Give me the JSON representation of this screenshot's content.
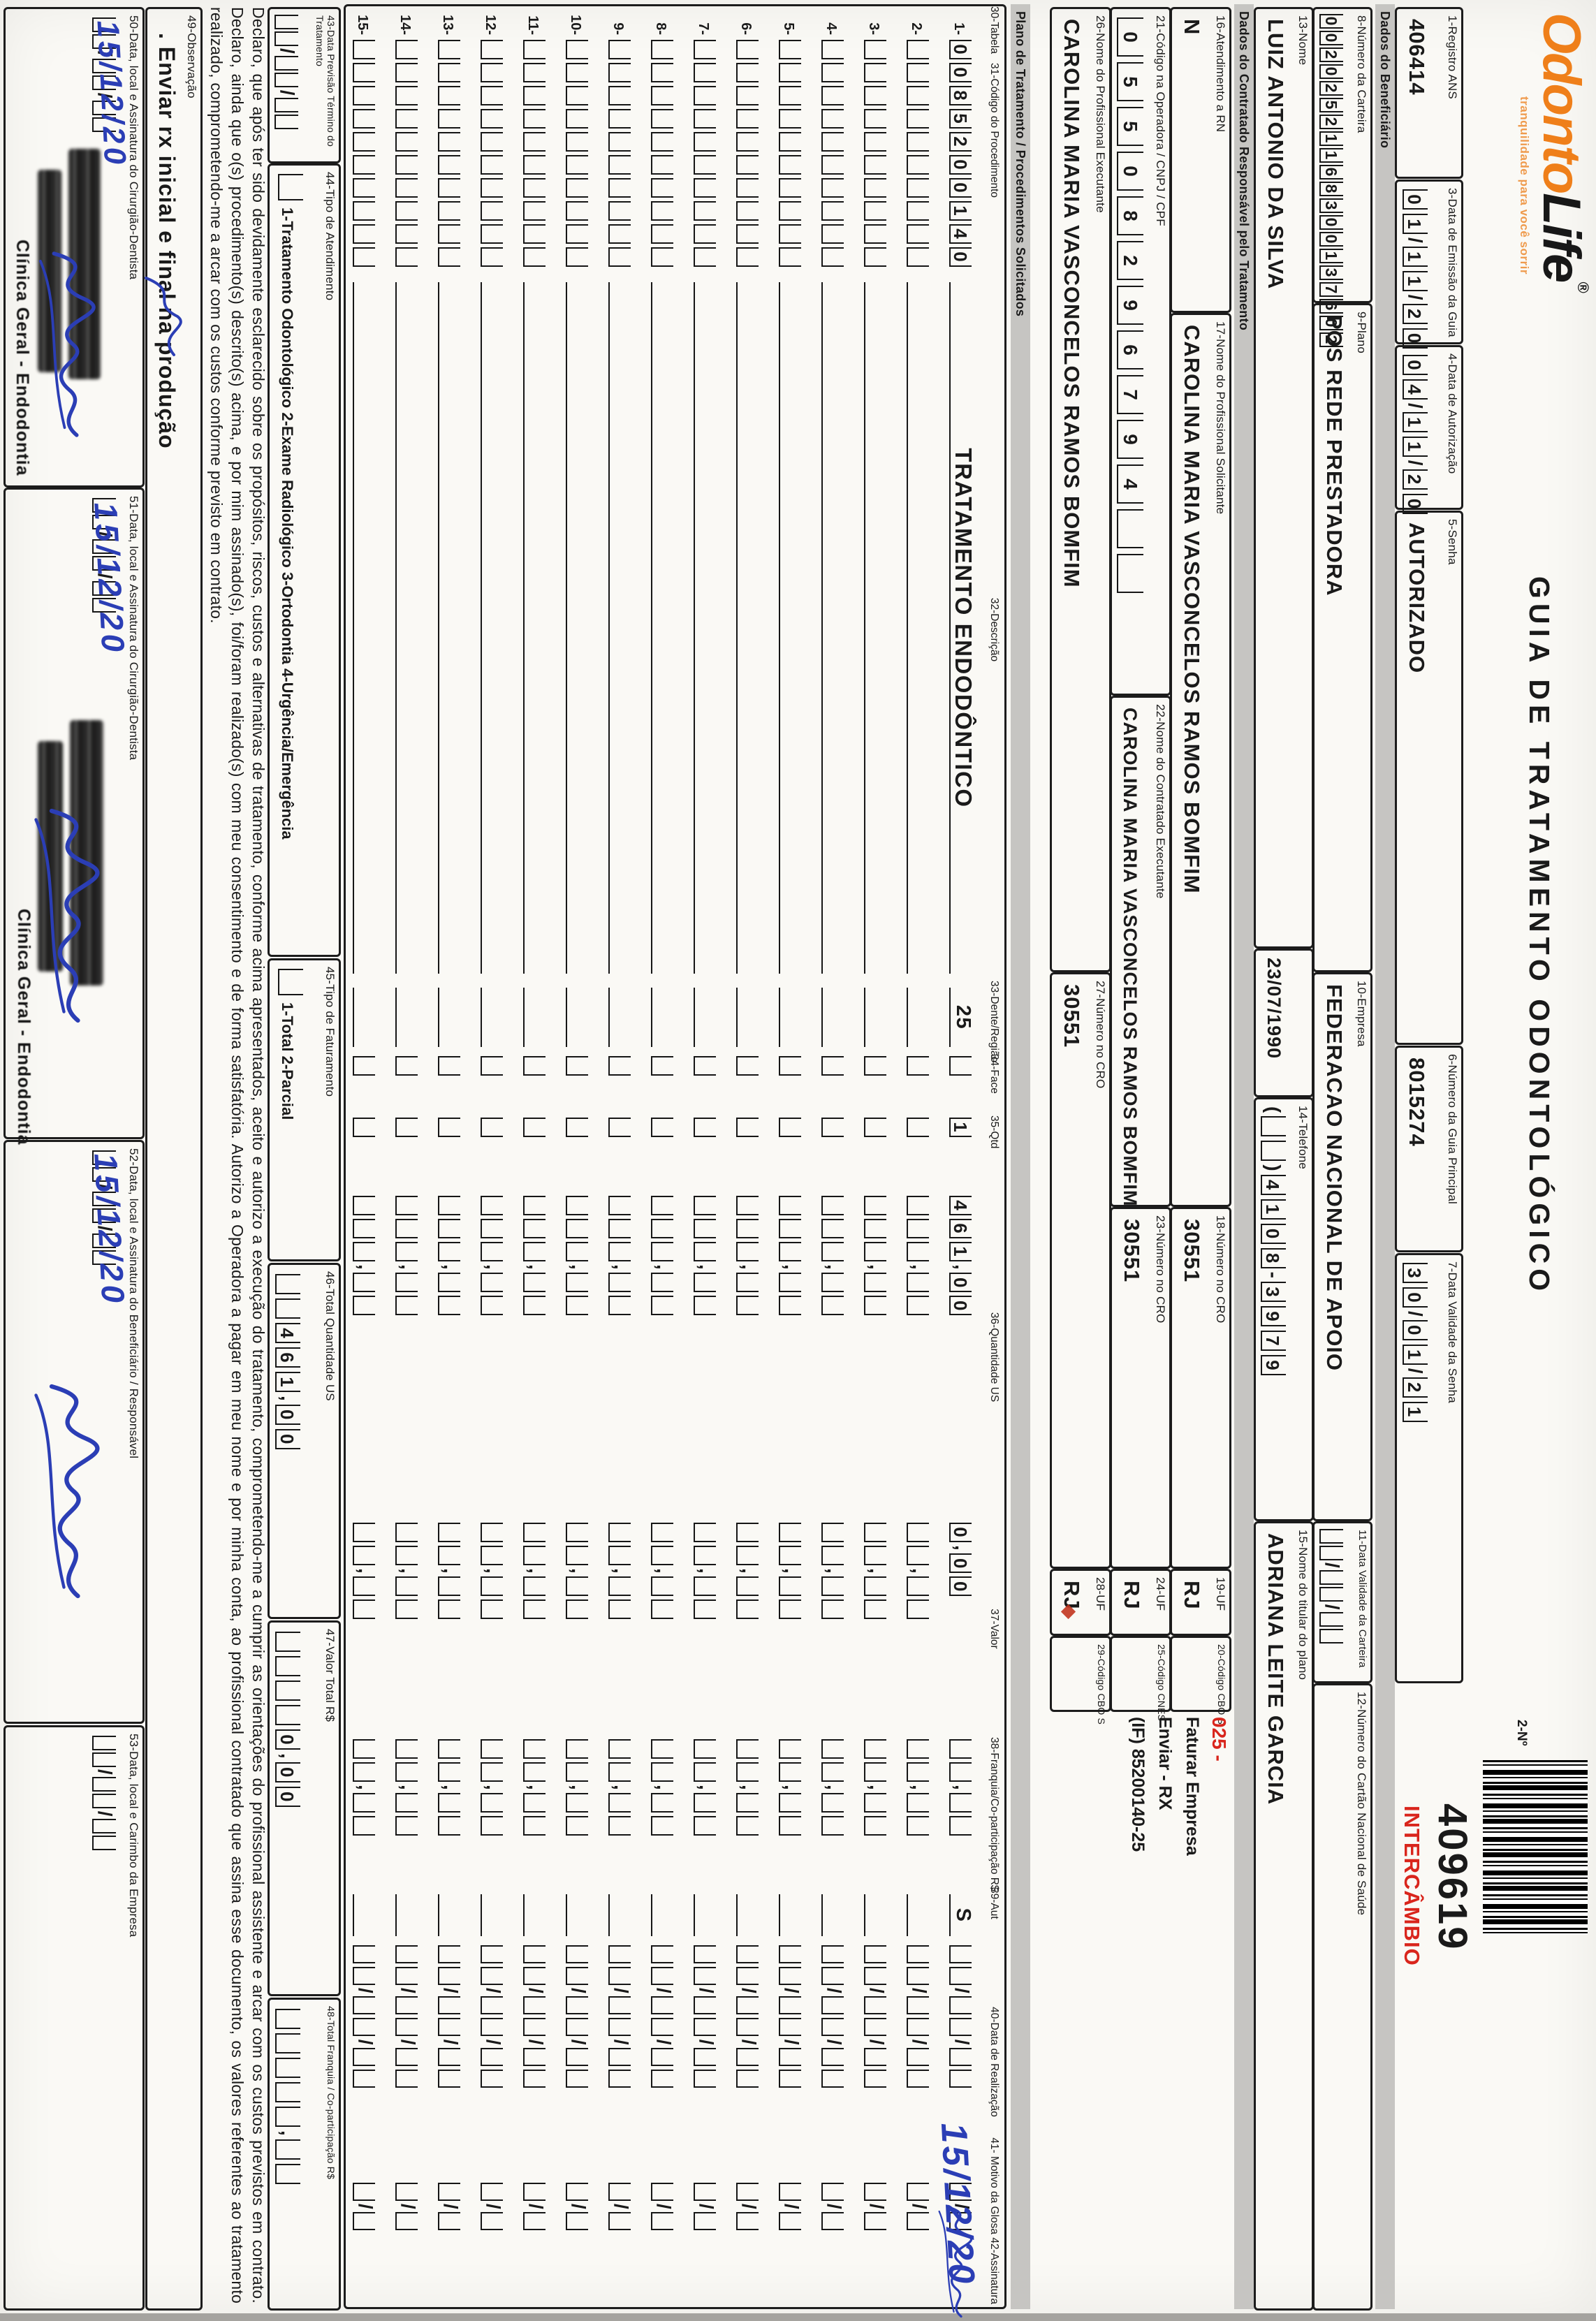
{
  "logo": {
    "part1": "Odonto",
    "part2": "Life",
    "reg": "®",
    "tagline": "tranquilidade para você sorrir"
  },
  "title": "GUIA DE TRATAMENTO ODONTOLÓGICO",
  "serial": {
    "no_label": "2-Nº",
    "number": "409619",
    "tag": "INTERCÂMBIO"
  },
  "f1": {
    "label": "1-Registro ANS",
    "value": "406414"
  },
  "f3": {
    "label": "3-Data de Emissão da Guia",
    "cells": [
      "0",
      "1",
      "/",
      "1",
      "1",
      "/",
      "2",
      "0"
    ]
  },
  "f4": {
    "label": "4-Data de Autorização",
    "cells": [
      "0",
      "4",
      "/",
      "1",
      "1",
      "/",
      "2",
      "0"
    ]
  },
  "f5": {
    "label": "5-Senha",
    "value": "AUTORIZADO"
  },
  "f6": {
    "label": "6-Número da Guia Principal",
    "value": "8015274"
  },
  "f7": {
    "label": "7-Data Validade da Senha",
    "cells": [
      "3",
      "0",
      "/",
      "0",
      "1",
      "/",
      "2",
      "1"
    ]
  },
  "sec_benef": "Dados do Beneficiário",
  "f8": {
    "label": "8-Número da Carteira",
    "cells": [
      "0",
      "0",
      "2",
      "0",
      "2",
      "5",
      "2",
      "1",
      "1",
      "6",
      "8",
      "3",
      "0",
      "0",
      "1",
      "3",
      "7",
      "6",
      "0",
      "2"
    ]
  },
  "f9": {
    "label": "9-Plano",
    "value": "POS REDE PRESTADORA"
  },
  "f10": {
    "label": "10-Empresa",
    "value": "FEDERACAO NACIONAL DE APOIO"
  },
  "f11": {
    "label": "11-Data Validade da Carteira",
    "cells": [
      "",
      "",
      "/",
      "",
      "",
      "/",
      "",
      ""
    ]
  },
  "f12": {
    "label": "12-Número do Cartão Nacional de Saúde"
  },
  "f13": {
    "label": "13-Nome",
    "value": "LUIZ ANTONIO DA SILVA",
    "birth": "23/07/1990"
  },
  "f14": {
    "label": "14-Telefone",
    "cells": [
      "(",
      "",
      "",
      ")",
      "4",
      "1",
      "0",
      "8",
      "-",
      "3",
      "9",
      "7",
      "9"
    ]
  },
  "f15": {
    "label": "15-Nome do titular do plano",
    "value": "ADRIANA LEITE GARCIA"
  },
  "sec_contr": "Dados do Contratado Responsável pelo Tratamento",
  "f16": {
    "label": "16-Atendimento a RN",
    "value": "N"
  },
  "f17": {
    "label": "17-Nome do Profissional Solicitante",
    "value": "CAROLINA MARIA VASCONCELOS RAMOS BOMFIM"
  },
  "f18": {
    "label": "18-Número no CRO",
    "value": "30551"
  },
  "f19": {
    "label": "19-UF",
    "value": "RJ"
  },
  "f20": {
    "label": "20-Código CBO S",
    "value": ""
  },
  "annotation": {
    "code": "025 -",
    "line1": "Faturar Empresa",
    "line2": "Enviar - RX",
    "line3": "(IF) 85200140-25"
  },
  "f21": {
    "label": "21-Código na Operadora / CNPJ / CPF",
    "cells": [
      "0",
      "5",
      "5",
      "0",
      "8",
      "2",
      "9",
      "6",
      "7",
      "9",
      "4",
      "",
      ""
    ]
  },
  "f22": {
    "label": "22-Nome do Contratado Executante",
    "value": "CAROLINA MARIA VASCONCELOS RAMOS BOMFIM"
  },
  "f23": {
    "label": "23-Número no CRO",
    "value": "30551"
  },
  "f24": {
    "label": "24-UF",
    "value": "RJ"
  },
  "f25": {
    "label": "25-Código CNES",
    "value": ""
  },
  "f26": {
    "label": "26-Nome do Profissional Executante",
    "value": "CAROLINA MARIA VASCONCELOS RAMOS BOMFIM"
  },
  "f27": {
    "label": "27-Número no CRO",
    "value": "30551"
  },
  "f28": {
    "label": "28-UF",
    "value": "RJ"
  },
  "f29": {
    "label": "29-Código CBO S",
    "value": ""
  },
  "sec_plano": "Plano de Tratamento / Procedimentos Solicitados",
  "table": {
    "headers": [
      "30-Tabela",
      "31-Código do Procedimento",
      "32-Descrição",
      "33-Dente/Região",
      "34-Face",
      "35-Qtd",
      "36-Quantidade US",
      "37-Valor",
      "38-Franquia/Co-participação R$",
      "39-Aut",
      "40-Data de Realização",
      "41- Motivo da Glosa 42-Assinatura"
    ],
    "row_count": 15,
    "rows": [
      {
        "n": "1",
        "cod": [
          "0",
          "0",
          "8",
          "5",
          "2",
          "0",
          "0",
          "1",
          "4",
          "0"
        ],
        "desc": "TRATAMENTO ENDODÔNTICO",
        "dente": "25",
        "face": "",
        "qtd": "1",
        "us": [
          "4",
          "6",
          "1",
          ",",
          "0",
          "0"
        ],
        "val": [
          "0",
          ",",
          "0",
          "0"
        ],
        "fr": [
          "",
          "",
          ",",
          "",
          ""
        ],
        "aut": "S",
        "data_hand": "15/12/20",
        "signed": true
      }
    ],
    "empty": {
      "cod": [
        "",
        "",
        "",
        "",
        "",
        "",
        "",
        "",
        "",
        ""
      ],
      "desc": "",
      "dente": "",
      "face": "",
      "qtd": "",
      "us": [
        "",
        "",
        "",
        ",",
        "",
        ""
      ],
      "val": [
        "",
        "",
        ",",
        "",
        ""
      ],
      "fr": [
        "",
        "",
        ",",
        "",
        ""
      ],
      "aut": "",
      "date_cells": [
        "",
        "",
        "/",
        "",
        "",
        "/",
        "",
        ""
      ],
      "glosa": [
        "",
        "/",
        ""
      ]
    }
  },
  "f43": {
    "label": "43-Data Previsão Término do Tratamento",
    "cells": [
      "",
      "",
      "/",
      "",
      "",
      "/",
      "",
      ""
    ]
  },
  "f44": {
    "label": "44-Tipo de Atendimento",
    "options": "1-Tratamento Odontológico    2-Exame Radiológico    3-Ortodontia    4-Urgência/Emergência"
  },
  "f45": {
    "label": "45-Tipo de Faturamento",
    "options": "1-Total    2-Parcial"
  },
  "f46": {
    "label": "46-Total Quantidade US",
    "cells": [
      "",
      "",
      "4",
      "6",
      "1",
      ",",
      "0",
      "0"
    ]
  },
  "f47": {
    "label": "47-Valor Total R$",
    "cells": [
      "",
      "",
      "",
      "",
      "0",
      ",",
      "0",
      "0"
    ]
  },
  "f48": {
    "label": "48-Total Franquia / Co-participação R$",
    "cells": [
      "",
      "",
      "",
      "",
      "",
      ",",
      "",
      ""
    ]
  },
  "declaration": "Declaro, que após ter sido devidamente esclarecido sobre os propósitos, riscos, custos e alternativas de tratamento, conforme acima apresentados, aceito e autorizo a execução do tratamento, comprometendo-me a cumprir as orientações do profissional assistente e arcar com os custos previstos em contrato. Declaro, ainda que o(s) procedimento(s) descrito(s) acima, e por mim assinado(s), foi/foram realizado(s) com meu consentimento e de forma satisfatória. Autorizo a Operadora a pagar em meu nome e por minha conta, ao profissional contratado que assina esse documento, os valores referentes ao tratamento realizado, comprometendo-me a arcar com os custos conforme previsto em contrato.",
  "f49": {
    "label": "49-Observação",
    "note": ". Enviar rx inicial e final na produção"
  },
  "f50": {
    "label": "50-Data, local e Assinatura do Cirurgião-Dentista",
    "date": "15/12/20",
    "date_cells": [
      "",
      "",
      "/",
      "",
      "",
      "/",
      "",
      ""
    ],
    "stamp": "Clínica Geral - Endodontia"
  },
  "f51": {
    "label": "51-Data, local e Assinatura do Cirurgião-Dentista",
    "date": "15/12/20",
    "date_cells": [
      "",
      "",
      "/",
      "",
      "",
      "/",
      "",
      ""
    ],
    "stamp": "Clínica Geral - Endodontia"
  },
  "f52": {
    "label": "52-Data, local e Assinatura do Beneficiário / Responsável",
    "date": "15/12/20",
    "date_cells": [
      "",
      "",
      "/",
      "",
      "",
      "/",
      "",
      ""
    ]
  },
  "f53": {
    "label": "53-Data, local e Carimbo da Empresa",
    "date_cells": [
      "",
      "",
      "/",
      "",
      "",
      "/",
      "",
      ""
    ]
  },
  "colors": {
    "accent_orange": "#ef7f1a",
    "red": "#d9251c",
    "blue_pen": "#2b3eb5",
    "ink": "#1a1a1a",
    "bar_gray": "#c6c5c2"
  }
}
